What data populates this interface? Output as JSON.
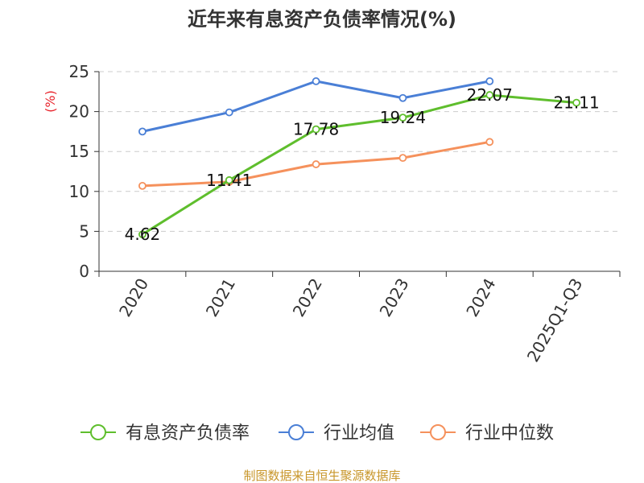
{
  "chart_data": {
    "type": "line",
    "title": "近年来有息资产负债率情况(%)",
    "ylabel": "(%)",
    "xlabel": "",
    "categories": [
      "2020",
      "2021",
      "2022",
      "2023",
      "2024",
      "2025Q1-Q3"
    ],
    "ylim": [
      0,
      25
    ],
    "yticks": [
      "0",
      "5",
      "10",
      "15",
      "20",
      "25"
    ],
    "grid": true,
    "legend_position": "bottom",
    "series": [
      {
        "name": "有息资产负债率",
        "color": "#5fbe2d",
        "values": [
          4.62,
          11.41,
          17.78,
          19.24,
          22.07,
          21.11
        ],
        "labels": [
          "4.62",
          "11.41",
          "17.78",
          "19.24",
          "22.07",
          "21.11"
        ]
      },
      {
        "name": "行业均值",
        "color": "#4a7fd6",
        "values": [
          17.5,
          19.9,
          23.8,
          21.7,
          23.8,
          null
        ]
      },
      {
        "name": "行业中位数",
        "color": "#f5915c",
        "values": [
          10.7,
          11.2,
          13.4,
          14.2,
          16.2,
          null
        ]
      }
    ],
    "source": "制图数据来自恒生聚源数据库"
  }
}
